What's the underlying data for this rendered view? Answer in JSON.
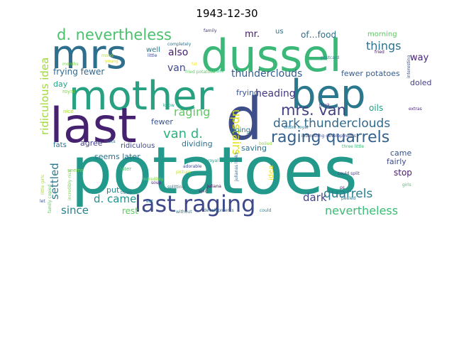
{
  "title": "1943-12-30",
  "words": [
    {
      "text": "potatoes",
      "color": "#23998b"
    },
    {
      "text": "dussel",
      "color": "#3bb878"
    },
    {
      "text": "mrs",
      "color": "#2e6f8e"
    },
    {
      "text": "mother",
      "color": "#27a181"
    },
    {
      "text": "bep",
      "color": "#2a788e"
    },
    {
      "text": "last",
      "color": "#46216f"
    },
    {
      "text": "d",
      "color": "#3d4e8a"
    },
    {
      "text": "last raging",
      "color": "#3f4889"
    },
    {
      "text": "raging quarrels",
      "color": "#34618d"
    },
    {
      "text": "d. nevertheless",
      "color": "#4ac16d"
    },
    {
      "text": "mrs. van",
      "color": "#423f85"
    },
    {
      "text": "dark thunderclouds",
      "color": "#30698e"
    },
    {
      "text": "upstairs",
      "color": "#dde318"
    },
    {
      "text": "van d.",
      "color": "#2db27d"
    },
    {
      "text": "raging",
      "color": "#5ec962"
    },
    {
      "text": "quarrels",
      "color": "#277f8e"
    },
    {
      "text": "nevertheless",
      "color": "#3cbb75"
    },
    {
      "text": "things",
      "color": "#2c728e"
    },
    {
      "text": "heading",
      "color": "#453781"
    },
    {
      "text": "thunderclouds",
      "color": "#365c8d"
    },
    {
      "text": "settled",
      "color": "#2a788e"
    },
    {
      "text": "ridiculous idea",
      "color": "#9fda3a"
    },
    {
      "text": "since",
      "color": "#25858e"
    },
    {
      "text": "dark",
      "color": "#404588"
    },
    {
      "text": "d. came",
      "color": "#20928c"
    },
    {
      "text": "mr.",
      "color": "#48186a"
    },
    {
      "text": "also",
      "color": "#482173"
    },
    {
      "text": "van",
      "color": "#3e4989"
    },
    {
      "text": "of…food",
      "color": "#2d708e"
    },
    {
      "text": "way",
      "color": "#482576"
    },
    {
      "text": "frying fewer",
      "color": "#31688e"
    },
    {
      "text": "fewer potatoes",
      "color": "#365c8d"
    },
    {
      "text": "seems later",
      "color": "#2c728e"
    },
    {
      "text": "frying",
      "color": "#39558c"
    },
    {
      "text": "oils",
      "color": "#20a386"
    },
    {
      "text": "doled",
      "color": "#433e85"
    },
    {
      "text": "saving",
      "color": "#2d708e"
    },
    {
      "text": "agree",
      "color": "#423f85"
    },
    {
      "text": "going",
      "color": "#287d8e"
    },
    {
      "text": "ridiculous",
      "color": "#3f4889"
    },
    {
      "text": "dividing",
      "color": "#2c728e"
    },
    {
      "text": "fairly",
      "color": "#3e4c8a"
    },
    {
      "text": "came",
      "color": "#3b528b"
    },
    {
      "text": "stop",
      "color": "#481c6e"
    },
    {
      "text": "fats",
      "color": "#2e6e8e"
    },
    {
      "text": "idea",
      "color": "#f1e51d"
    },
    {
      "text": "rest",
      "color": "#5ec962"
    },
    {
      "text": "put",
      "color": "#26828e"
    },
    {
      "text": "fewer",
      "color": "#3a538b"
    },
    {
      "text": "well",
      "color": "#29798e"
    },
    {
      "text": "day",
      "color": "#22a785"
    },
    {
      "text": "morning",
      "color": "#5ec962"
    },
    {
      "text": "us",
      "color": "#2c728e"
    },
    {
      "text": "royal",
      "color": "#84d44b"
    },
    {
      "text": "nice",
      "color": "#a5db36"
    },
    {
      "text": "seems",
      "color": "#7fd34e"
    },
    {
      "text": "later",
      "color": "#4ac16d"
    },
    {
      "text": "family",
      "color": "#443983"
    },
    {
      "text": "little",
      "color": "#3e4989"
    },
    {
      "text": "postcard",
      "color": "#26828e"
    },
    {
      "text": "fried",
      "color": "#471063"
    },
    {
      "text": "entire",
      "color": "#35b779"
    },
    {
      "text": "extras",
      "color": "#482677"
    },
    {
      "text": "completely",
      "color": "#2c728e"
    },
    {
      "text": "interesting",
      "color": "#3b528b"
    },
    {
      "text": "think",
      "color": "#472d7b"
    },
    {
      "text": "know",
      "color": "#20a386"
    },
    {
      "text": "looks",
      "color": "#2c728e"
    },
    {
      "text": "incredibly",
      "color": "#84d44b"
    },
    {
      "text": "girls",
      "color": "#4ac16d"
    },
    {
      "text": "little girls",
      "color": "#a5db36"
    },
    {
      "text": "could split",
      "color": "#433e85"
    },
    {
      "text": "three little",
      "color": "#3bbb75"
    },
    {
      "text": "royal family",
      "color": "#1fa088"
    },
    {
      "text": "juliana",
      "color": "#440154"
    },
    {
      "text": "split",
      "color": "#482878"
    },
    {
      "text": "soup",
      "color": "#472a7a"
    },
    {
      "text": "adorable",
      "color": "#3e4989"
    },
    {
      "text": "picture",
      "color": "#bddf26"
    },
    {
      "text": "eat",
      "color": "#2c728e"
    },
    {
      "text": "without",
      "color": "#277f8e"
    },
    {
      "text": "developments",
      "color": "#31688e"
    },
    {
      "text": "could",
      "color": "#26828e"
    },
    {
      "text": "peeled",
      "color": "#2a788e"
    },
    {
      "text": "ps",
      "color": "#482475"
    },
    {
      "text": "three",
      "color": "#2c728e"
    },
    {
      "text": "splitting",
      "color": "#2a788e"
    },
    {
      "text": "let",
      "color": "#3b528b"
    },
    {
      "text": "young",
      "color": "#d8e219"
    },
    {
      "text": "mood",
      "color": "#b5de2b"
    },
    {
      "text": "fat",
      "color": "#fde725"
    },
    {
      "text": "interesting developments",
      "color": "#3e4989"
    },
    {
      "text": "family copied",
      "color": "#5ec962"
    },
    {
      "text": "incredibly nice",
      "color": "#7ad151"
    },
    {
      "text": "fried potatoes",
      "color": "#5ec962"
    },
    {
      "text": "entire royal",
      "color": "#2c728e"
    },
    {
      "text": "julianas looks",
      "color": "#31688e"
    },
    {
      "text": "months",
      "color": "#7ad151"
    },
    {
      "text": "boiled",
      "color": "#8fd744"
    }
  ]
}
